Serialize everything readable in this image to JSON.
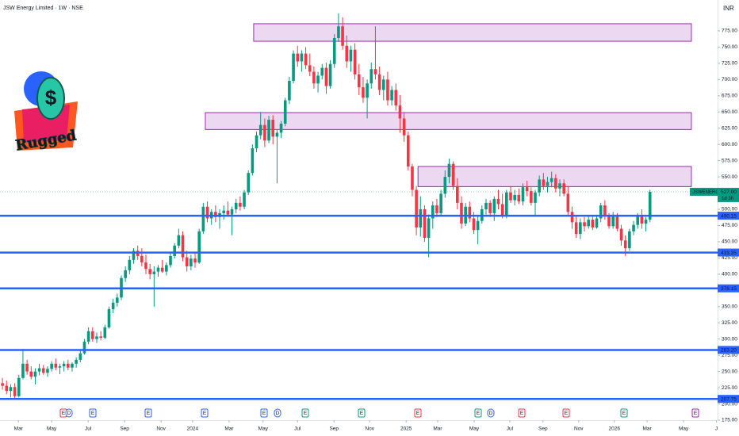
{
  "chart_data": {
    "type": "candlestick",
    "title": "JSW Energy Limited · 1W · NSE",
    "currency": "INR",
    "logo": {
      "symbol": "$",
      "text": "Rugged"
    },
    "symbol": "JSWENERGY",
    "countdown": "1d 3h",
    "last_price": {
      "value": 527,
      "label": "527.00"
    },
    "up_color": "#089981",
    "down_color": "#f23645",
    "ylim": [
      175,
      822.6
    ],
    "yticks": [
      {
        "value": 175,
        "label": "175.00"
      },
      {
        "value": 200,
        "label": "200.00"
      },
      {
        "value": 225,
        "label": "225.00"
      },
      {
        "value": 250,
        "label": "250.00"
      },
      {
        "value": 275,
        "label": "275.00"
      },
      {
        "value": 300,
        "label": "300.00"
      },
      {
        "value": 325,
        "label": "325.00"
      },
      {
        "value": 350,
        "label": "350.00"
      },
      {
        "value": 375,
        "label": "375.00"
      },
      {
        "value": 400,
        "label": "400.00"
      },
      {
        "value": 425,
        "label": "425.00"
      },
      {
        "value": 450,
        "label": "450.00"
      },
      {
        "value": 475,
        "label": "475.00"
      },
      {
        "value": 500,
        "label": "500.00"
      },
      {
        "value": 550,
        "label": "550.00"
      },
      {
        "value": 575,
        "label": "575.00"
      },
      {
        "value": 600,
        "label": "600.00"
      },
      {
        "value": 625,
        "label": "625.00"
      },
      {
        "value": 650,
        "label": "650.00"
      },
      {
        "value": 675,
        "label": "675.00"
      },
      {
        "value": 700,
        "label": "700.00"
      },
      {
        "value": 725,
        "label": "725.00"
      },
      {
        "value": 750,
        "label": "750.00"
      },
      {
        "value": 775,
        "label": "775.00"
      }
    ],
    "xlim": [
      -0.6,
      174.5
    ],
    "xticks": [
      {
        "value": 3.9,
        "label": "Mar"
      },
      {
        "value": 12,
        "label": "May"
      },
      {
        "value": 20.9,
        "label": "Jul"
      },
      {
        "value": 29.8,
        "label": "Sep"
      },
      {
        "value": 38.7,
        "label": "Nov"
      },
      {
        "value": 46.4,
        "label": "2024"
      },
      {
        "value": 55.3,
        "label": "Mar"
      },
      {
        "value": 63.6,
        "label": "May"
      },
      {
        "value": 72,
        "label": "Jul"
      },
      {
        "value": 80.9,
        "label": "Sep"
      },
      {
        "value": 89.6,
        "label": "Nov"
      },
      {
        "value": 98.5,
        "label": "2025"
      },
      {
        "value": 106.2,
        "label": "Mar"
      },
      {
        "value": 115.1,
        "label": "May"
      },
      {
        "value": 123.8,
        "label": "Jul"
      },
      {
        "value": 131.9,
        "label": "Sep"
      },
      {
        "value": 140.6,
        "label": "Nov"
      },
      {
        "value": 149.3,
        "label": "2026"
      },
      {
        "value": 157.3,
        "label": "Mar"
      },
      {
        "value": 166.2,
        "label": "May"
      },
      {
        "value": 174.2,
        "label": "J"
      }
    ],
    "levels": [
      {
        "value": 490.15,
        "label": "490.15"
      },
      {
        "value": 433.35,
        "label": "433.35"
      },
      {
        "value": 378.15,
        "label": "378.15"
      },
      {
        "value": 283.2,
        "label": "283.20"
      },
      {
        "value": 207.75,
        "label": "207.75"
      }
    ],
    "level_color": "#2962ff",
    "zones": [
      {
        "x": [
          61.3,
          168.1
        ],
        "y": [
          759,
          786
        ]
      },
      {
        "x": [
          49.5,
          168.1
        ],
        "y": [
          623,
          649
        ]
      },
      {
        "x": [
          101.4,
          168.1
        ],
        "y": [
          535,
          566
        ]
      }
    ],
    "zone_color": "#9c27b0",
    "events": [
      {
        "label": "E",
        "color": "#f23645"
      },
      {
        "label": "D",
        "color": "#2962ff"
      },
      {
        "label": "E",
        "color": "#2962ff"
      },
      {
        "label": "E",
        "color": "#2962ff"
      },
      {
        "label": "E",
        "color": "#2962ff"
      },
      {
        "label": "E",
        "color": "#2962ff"
      },
      {
        "label": "D",
        "color": "#2962ff"
      },
      {
        "label": "E",
        "color": "#089981"
      },
      {
        "label": "E",
        "color": "#089981"
      },
      {
        "label": "E",
        "color": "#f23645"
      },
      {
        "label": "E",
        "color": "#089981"
      },
      {
        "label": "D",
        "color": "#2962ff"
      },
      {
        "label": "E",
        "color": "#f23645"
      },
      {
        "label": "E",
        "color": "#f23645"
      },
      {
        "label": "E",
        "color": "#089981"
      },
      {
        "label": "E",
        "color": "#9c27b0"
      }
    ],
    "candles": [
      [
        232,
        240,
        222,
        228
      ],
      [
        228,
        236,
        215,
        220
      ],
      [
        220,
        230,
        210,
        226
      ],
      [
        226,
        232,
        208,
        212
      ],
      [
        212,
        245,
        210,
        240
      ],
      [
        240,
        285,
        238,
        262
      ],
      [
        262,
        268,
        245,
        250
      ],
      [
        250,
        258,
        238,
        242
      ],
      [
        242,
        255,
        230,
        250
      ],
      [
        250,
        262,
        244,
        255
      ],
      [
        255,
        260,
        245,
        248
      ],
      [
        248,
        258,
        242,
        254
      ],
      [
        254,
        266,
        250,
        262
      ],
      [
        262,
        270,
        252,
        256
      ],
      [
        256,
        262,
        246,
        258
      ],
      [
        258,
        266,
        250,
        262
      ],
      [
        262,
        268,
        252,
        256
      ],
      [
        256,
        264,
        250,
        262
      ],
      [
        262,
        272,
        256,
        268
      ],
      [
        268,
        282,
        264,
        278
      ],
      [
        278,
        300,
        276,
        296
      ],
      [
        296,
        318,
        292,
        312
      ],
      [
        312,
        318,
        296,
        300
      ],
      [
        300,
        310,
        294,
        304
      ],
      [
        304,
        312,
        298,
        302
      ],
      [
        302,
        322,
        300,
        318
      ],
      [
        318,
        350,
        316,
        346
      ],
      [
        346,
        362,
        340,
        356
      ],
      [
        356,
        370,
        350,
        364
      ],
      [
        364,
        398,
        360,
        394
      ],
      [
        394,
        412,
        388,
        406
      ],
      [
        406,
        428,
        400,
        422
      ],
      [
        422,
        440,
        416,
        436
      ],
      [
        436,
        444,
        422,
        428
      ],
      [
        428,
        440,
        412,
        418
      ],
      [
        418,
        430,
        400,
        408
      ],
      [
        408,
        416,
        392,
        400
      ],
      [
        400,
        412,
        350,
        404
      ],
      [
        404,
        414,
        396,
        410
      ],
      [
        410,
        422,
        402,
        404
      ],
      [
        404,
        418,
        398,
        414
      ],
      [
        414,
        432,
        410,
        428
      ],
      [
        428,
        448,
        424,
        444
      ],
      [
        444,
        470,
        440,
        460
      ],
      [
        460,
        466,
        420,
        426
      ],
      [
        426,
        436,
        404,
        412
      ],
      [
        412,
        430,
        406,
        424
      ],
      [
        424,
        432,
        410,
        418
      ],
      [
        418,
        470,
        416,
        466
      ],
      [
        466,
        510,
        462,
        504
      ],
      [
        504,
        512,
        480,
        486
      ],
      [
        486,
        500,
        476,
        496
      ],
      [
        496,
        506,
        480,
        488
      ],
      [
        488,
        500,
        470,
        494
      ],
      [
        494,
        506,
        484,
        498
      ],
      [
        498,
        512,
        490,
        492
      ],
      [
        492,
        504,
        460,
        500
      ],
      [
        500,
        516,
        494,
        510
      ],
      [
        510,
        520,
        498,
        504
      ],
      [
        504,
        530,
        500,
        526
      ],
      [
        526,
        560,
        522,
        556
      ],
      [
        556,
        600,
        552,
        594
      ],
      [
        594,
        620,
        588,
        614
      ],
      [
        614,
        650,
        608,
        630
      ],
      [
        630,
        640,
        596,
        606
      ],
      [
        606,
        644,
        602,
        638
      ],
      [
        638,
        645,
        600,
        612
      ],
      [
        612,
        622,
        540,
        618
      ],
      [
        618,
        636,
        610,
        632
      ],
      [
        632,
        672,
        628,
        668
      ],
      [
        668,
        704,
        662,
        698
      ],
      [
        698,
        745,
        694,
        740
      ],
      [
        740,
        752,
        720,
        728
      ],
      [
        728,
        745,
        712,
        740
      ],
      [
        740,
        750,
        716,
        722
      ],
      [
        722,
        740,
        705,
        712
      ],
      [
        712,
        720,
        686,
        694
      ],
      [
        694,
        712,
        680,
        706
      ],
      [
        706,
        724,
        700,
        718
      ],
      [
        718,
        726,
        678,
        690
      ],
      [
        690,
        730,
        686,
        724
      ],
      [
        724,
        770,
        718,
        764
      ],
      [
        764,
        802,
        758,
        782
      ],
      [
        782,
        796,
        746,
        752
      ],
      [
        752,
        768,
        718,
        728
      ],
      [
        728,
        752,
        712,
        746
      ],
      [
        746,
        756,
        700,
        708
      ],
      [
        708,
        724,
        676,
        688
      ],
      [
        688,
        704,
        664,
        672
      ],
      [
        672,
        700,
        640,
        694
      ],
      [
        694,
        726,
        686,
        716
      ],
      [
        716,
        782,
        700,
        708
      ],
      [
        708,
        720,
        676,
        684
      ],
      [
        684,
        706,
        668,
        700
      ],
      [
        700,
        712,
        660,
        668
      ],
      [
        668,
        690,
        660,
        684
      ],
      [
        684,
        694,
        652,
        660
      ],
      [
        660,
        676,
        618,
        640
      ],
      [
        640,
        650,
        604,
        614
      ],
      [
        614,
        620,
        560,
        566
      ],
      [
        566,
        570,
        520,
        530
      ],
      [
        530,
        536,
        460,
        472
      ],
      [
        472,
        520,
        458,
        500
      ],
      [
        500,
        506,
        450,
        456
      ],
      [
        456,
        492,
        426,
        486
      ],
      [
        486,
        512,
        470,
        506
      ],
      [
        506,
        516,
        488,
        494
      ],
      [
        494,
        530,
        490,
        524
      ],
      [
        524,
        560,
        518,
        550
      ],
      [
        550,
        578,
        540,
        570
      ],
      [
        570,
        574,
        530,
        536
      ],
      [
        536,
        548,
        500,
        510
      ],
      [
        510,
        520,
        470,
        478
      ],
      [
        478,
        510,
        474,
        504
      ],
      [
        504,
        512,
        480,
        486
      ],
      [
        486,
        496,
        462,
        468
      ],
      [
        468,
        490,
        446,
        482
      ],
      [
        482,
        506,
        478,
        500
      ],
      [
        500,
        516,
        492,
        510
      ],
      [
        510,
        514,
        488,
        494
      ],
      [
        494,
        520,
        482,
        516
      ],
      [
        516,
        530,
        500,
        508
      ],
      [
        508,
        524,
        486,
        490
      ],
      [
        490,
        530,
        486,
        526
      ],
      [
        526,
        536,
        510,
        514
      ],
      [
        514,
        530,
        506,
        522
      ],
      [
        522,
        532,
        508,
        512
      ],
      [
        512,
        540,
        506,
        534
      ],
      [
        534,
        544,
        520,
        528
      ],
      [
        528,
        534,
        506,
        510
      ],
      [
        510,
        530,
        490,
        526
      ],
      [
        526,
        552,
        520,
        546
      ],
      [
        546,
        556,
        530,
        536
      ],
      [
        536,
        550,
        526,
        542
      ],
      [
        542,
        558,
        534,
        548
      ],
      [
        548,
        554,
        526,
        532
      ],
      [
        532,
        546,
        520,
        540
      ],
      [
        540,
        546,
        520,
        524
      ],
      [
        524,
        536,
        490,
        496
      ],
      [
        496,
        504,
        470,
        480
      ],
      [
        480,
        490,
        456,
        462
      ],
      [
        462,
        486,
        454,
        480
      ],
      [
        480,
        488,
        466,
        474
      ],
      [
        474,
        490,
        470,
        484
      ],
      [
        484,
        490,
        468,
        472
      ],
      [
        472,
        490,
        470,
        486
      ],
      [
        486,
        510,
        480,
        506
      ],
      [
        506,
        514,
        484,
        490
      ],
      [
        490,
        494,
        470,
        474
      ],
      [
        474,
        496,
        470,
        490
      ],
      [
        490,
        494,
        466,
        470
      ],
      [
        470,
        476,
        444,
        452
      ],
      [
        452,
        460,
        428,
        440
      ],
      [
        440,
        470,
        436,
        466
      ],
      [
        466,
        482,
        460,
        476
      ],
      [
        476,
        494,
        470,
        490
      ],
      [
        490,
        500,
        470,
        478
      ],
      [
        478,
        488,
        466,
        484
      ],
      [
        484,
        530,
        480,
        527
      ]
    ]
  }
}
